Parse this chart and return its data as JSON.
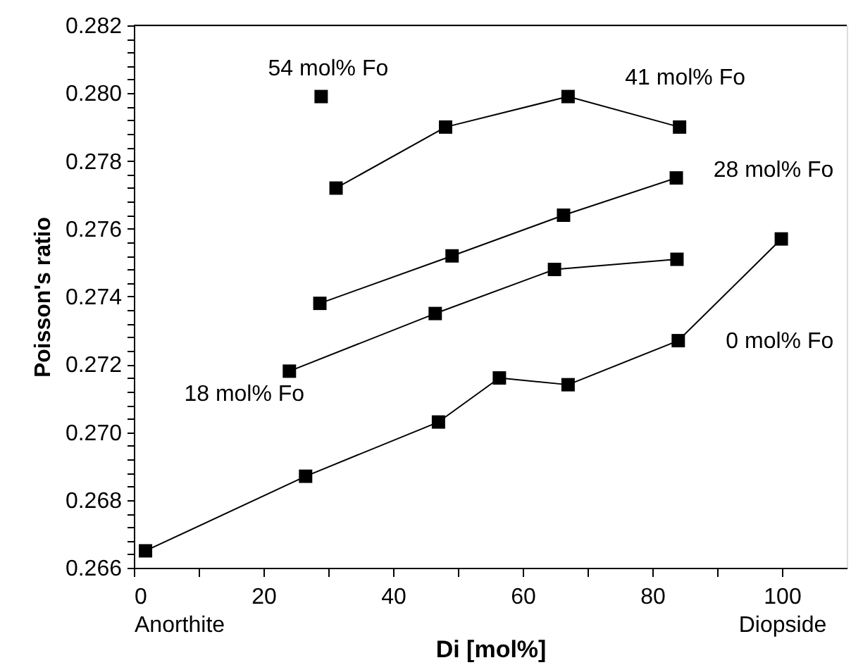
{
  "chart_data": {
    "type": "line",
    "xlabel": "Di [mol%]",
    "ylabel": "Poisson's ratio",
    "marker": "square",
    "line_style": "solid",
    "grid": false,
    "series": [
      {
        "name": "0 mol% Fo",
        "color": "#000000",
        "x": [
          1.8,
          26.5,
          47.0,
          56.4,
          67.0,
          84.0,
          99.9
        ],
        "values": [
          0.2665,
          0.2687,
          0.2703,
          0.2716,
          0.2714,
          0.2727,
          0.2757
        ]
      },
      {
        "name": "18 mol% Fo",
        "color": "#000000",
        "x": [
          24.0,
          46.5,
          64.9,
          83.8
        ],
        "values": [
          0.2718,
          0.2735,
          0.2748,
          0.2751
        ]
      },
      {
        "name": "28 mol% Fo",
        "color": "#000000",
        "x": [
          28.7,
          49.1,
          66.3,
          83.7
        ],
        "values": [
          0.2738,
          0.2752,
          0.2764,
          0.2775
        ]
      },
      {
        "name": "41 mol% Fo",
        "color": "#000000",
        "x": [
          31.2,
          48.1,
          67.0,
          84.2
        ],
        "values": [
          0.2772,
          0.279,
          0.2799,
          0.279
        ]
      },
      {
        "name": "54 mol% Fo",
        "color": "#000000",
        "x": [
          28.9
        ],
        "values": [
          0.2799
        ]
      }
    ],
    "xlim": [
      0,
      110
    ],
    "xticks": [
      {
        "value": 0,
        "label": "0\nAnorthite"
      },
      {
        "value": 10,
        "label": null
      },
      20,
      {
        "value": 30,
        "label": null
      },
      40,
      {
        "value": 50,
        "label": null
      },
      60,
      {
        "value": 70,
        "label": null
      },
      80,
      {
        "value": 90,
        "label": null
      },
      {
        "value": 100,
        "label": "100\nDiopside"
      }
    ],
    "ylim": [
      0.266,
      0.282
    ],
    "yticks": [
      {
        "value": 0.266,
        "label": "0.266"
      },
      {
        "value": 0.2664,
        "label": null
      },
      {
        "value": 0.2668,
        "label": null
      },
      {
        "value": 0.2672,
        "label": null
      },
      {
        "value": 0.2676,
        "label": null
      },
      {
        "value": 0.268,
        "label": "0.268"
      },
      {
        "value": 0.2684,
        "label": null
      },
      {
        "value": 0.2688,
        "label": null
      },
      {
        "value": 0.2692,
        "label": null
      },
      {
        "value": 0.2696,
        "label": null
      },
      {
        "value": 0.27,
        "label": "0.270"
      },
      {
        "value": 0.2704,
        "label": null
      },
      {
        "value": 0.2708,
        "label": null
      },
      {
        "value": 0.2712,
        "label": null
      },
      {
        "value": 0.2716,
        "label": null
      },
      {
        "value": 0.272,
        "label": "0.272"
      },
      {
        "value": 0.2724,
        "label": null
      },
      {
        "value": 0.2728,
        "label": null
      },
      {
        "value": 0.2732,
        "label": null
      },
      {
        "value": 0.2736,
        "label": null
      },
      {
        "value": 0.274,
        "label": "0.274"
      },
      {
        "value": 0.2744,
        "label": null
      },
      {
        "value": 0.2748,
        "label": null
      },
      {
        "value": 0.2752,
        "label": null
      },
      {
        "value": 0.2756,
        "label": null
      },
      {
        "value": 0.276,
        "label": "0.276"
      },
      {
        "value": 0.2764,
        "label": null
      },
      {
        "value": 0.2768,
        "label": null
      },
      {
        "value": 0.2772,
        "label": null
      },
      {
        "value": 0.2776,
        "label": null
      },
      {
        "value": 0.278,
        "label": "0.278"
      },
      {
        "value": 0.2784,
        "label": null
      },
      {
        "value": 0.2788,
        "label": null
      },
      {
        "value": 0.2792,
        "label": null
      },
      {
        "value": 0.2796,
        "label": null
      },
      {
        "value": 0.28,
        "label": "0.280"
      },
      {
        "value": 0.2804,
        "label": null
      },
      {
        "value": 0.2808,
        "label": null
      },
      {
        "value": 0.2812,
        "label": null
      },
      {
        "value": 0.2816,
        "label": null
      },
      {
        "value": 0.282,
        "label": "0.282"
      }
    ]
  }
}
